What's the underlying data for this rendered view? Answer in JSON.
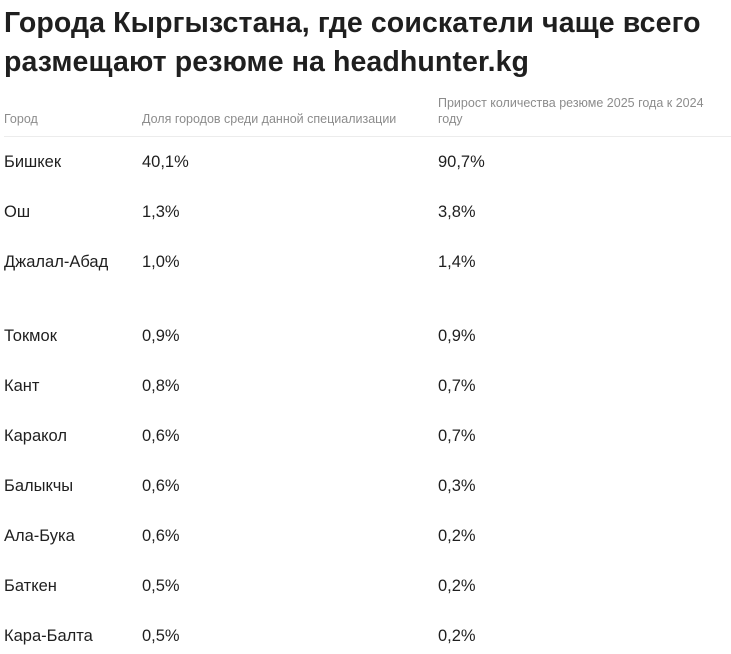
{
  "title": "Города Кыргызстана, где соискатели чаще всего размещают резюме на headhunter.kg",
  "table": {
    "headers": [
      "Город",
      "Доля городов среди данной специализации",
      "Прирост количества резюме 2025 года к 2024 году"
    ],
    "rows": [
      {
        "city": "Бишкек",
        "share": "40,1%",
        "growth": "90,7%"
      },
      {
        "city": "Ош",
        "share": "1,3%",
        "growth": "3,8%"
      },
      {
        "city": "Джалал-Абад",
        "share": "1,0%",
        "growth": "1,4%"
      },
      {
        "city": "Токмок",
        "share": "0,9%",
        "growth": "0,9%"
      },
      {
        "city": "Кант",
        "share": "0,8%",
        "growth": "0,7%"
      },
      {
        "city": "Каракол",
        "share": "0,6%",
        "growth": "0,7%"
      },
      {
        "city": "Балыкчы",
        "share": "0,6%",
        "growth": "0,3%"
      },
      {
        "city": "Ала-Бука",
        "share": "0,6%",
        "growth": "0,2%"
      },
      {
        "city": "Баткен",
        "share": "0,5%",
        "growth": "0,2%"
      },
      {
        "city": "Кара-Балта",
        "share": "0,5%",
        "growth": "0,2%"
      }
    ]
  }
}
